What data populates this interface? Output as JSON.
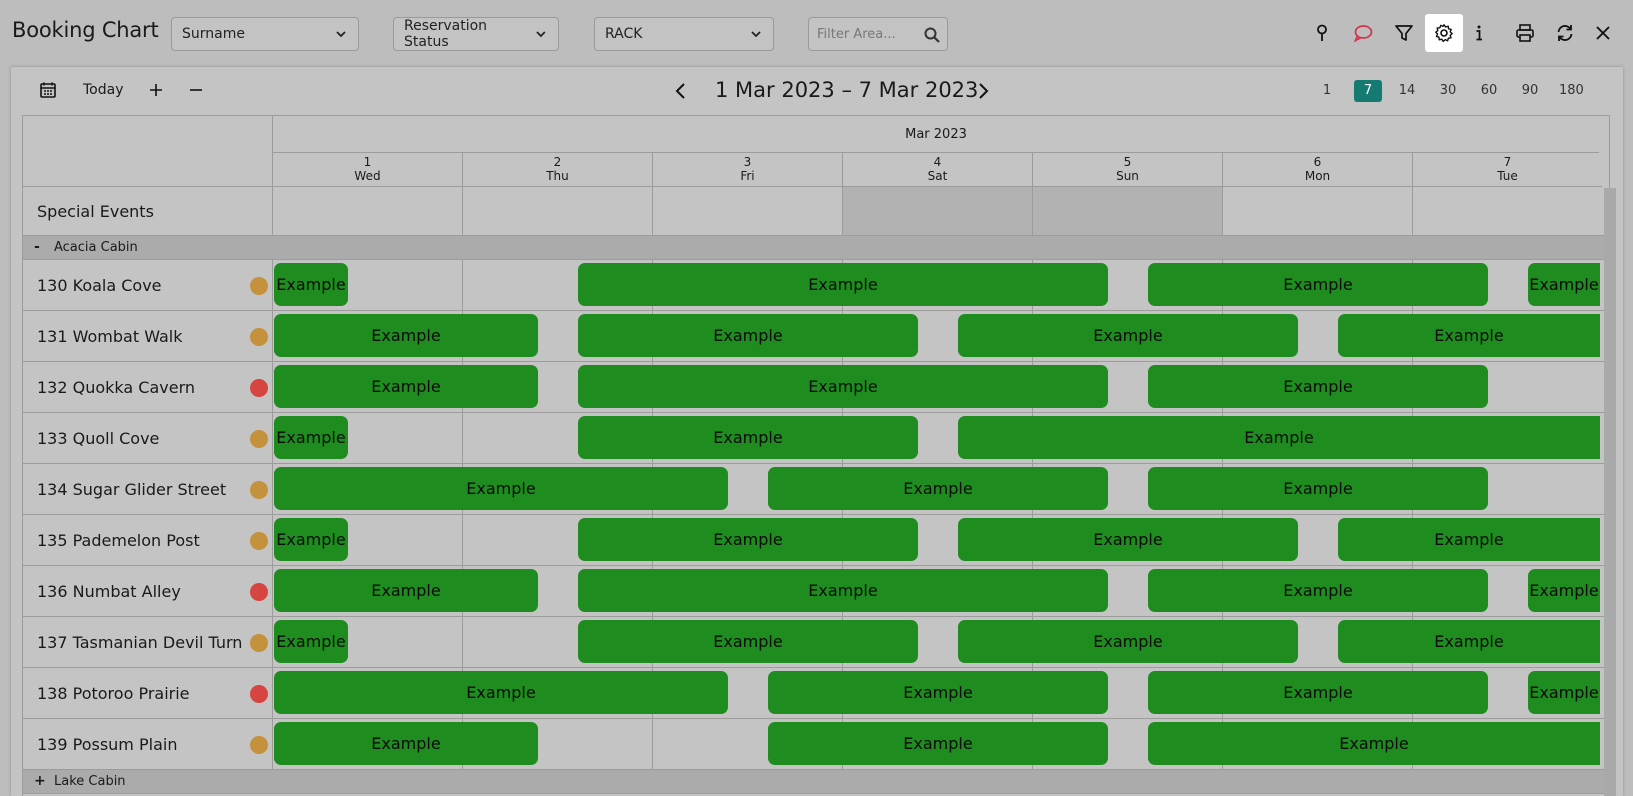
{
  "header": {
    "title": "Booking Chart",
    "sort_select": "Surname",
    "status_select": "Reservation Status",
    "rate_select": "RACK",
    "filter_placeholder": "Filter Area..."
  },
  "nav": {
    "today_label": "Today",
    "range_title": "1 Mar 2023 – 7 Mar 2023",
    "spans": [
      "1",
      "7",
      "14",
      "30",
      "60",
      "90",
      "180"
    ],
    "active_span": "7"
  },
  "chart": {
    "month": "Mar 2023",
    "days": [
      {
        "num": "1",
        "dow": "Wed"
      },
      {
        "num": "2",
        "dow": "Thu"
      },
      {
        "num": "3",
        "dow": "Fri"
      },
      {
        "num": "4",
        "dow": "Sat"
      },
      {
        "num": "5",
        "dow": "Sun"
      },
      {
        "num": "6",
        "dow": "Mon"
      },
      {
        "num": "7",
        "dow": "Tue"
      }
    ],
    "weekend_days": [
      3,
      4
    ],
    "special_events_label": "Special Events",
    "booking_label": "Example",
    "groups": [
      {
        "toggle": "-",
        "name": "Acacia Cabin",
        "rooms": [
          {
            "name": "130 Koala Cove",
            "status": "amber",
            "bookings": [
              [
                0,
                0.4
              ],
              [
                1.6,
                4.4
              ],
              [
                4.6,
                6.4
              ],
              [
                6.6,
                7
              ]
            ]
          },
          {
            "name": "131 Wombat Walk",
            "status": "amber",
            "bookings": [
              [
                0,
                1.4
              ],
              [
                1.6,
                3.4
              ],
              [
                3.6,
                5.4
              ],
              [
                5.6,
                7
              ]
            ]
          },
          {
            "name": "132 Quokka Cavern",
            "status": "red",
            "bookings": [
              [
                0,
                1.4
              ],
              [
                1.6,
                4.4
              ],
              [
                4.6,
                6.4
              ]
            ]
          },
          {
            "name": "133 Quoll Cove",
            "status": "amber",
            "bookings": [
              [
                0,
                0.4
              ],
              [
                1.6,
                3.4
              ],
              [
                3.6,
                7
              ]
            ]
          },
          {
            "name": "134 Sugar Glider Street",
            "status": "amber",
            "bookings": [
              [
                0,
                2.4
              ],
              [
                2.6,
                4.4
              ],
              [
                4.6,
                6.4
              ]
            ]
          },
          {
            "name": "135 Pademelon Post",
            "status": "amber",
            "bookings": [
              [
                0,
                0.4
              ],
              [
                1.6,
                3.4
              ],
              [
                3.6,
                5.4
              ],
              [
                5.6,
                7
              ]
            ]
          },
          {
            "name": "136 Numbat Alley",
            "status": "red",
            "bookings": [
              [
                0,
                1.4
              ],
              [
                1.6,
                4.4
              ],
              [
                4.6,
                6.4
              ],
              [
                6.6,
                7
              ]
            ]
          },
          {
            "name": "137 Tasmanian Devil Turn",
            "status": "amber",
            "bookings": [
              [
                0,
                0.4
              ],
              [
                1.6,
                3.4
              ],
              [
                3.6,
                5.4
              ],
              [
                5.6,
                7
              ]
            ]
          },
          {
            "name": "138 Potoroo Prairie",
            "status": "red",
            "bookings": [
              [
                0,
                2.4
              ],
              [
                2.6,
                4.4
              ],
              [
                4.6,
                6.4
              ],
              [
                6.6,
                7
              ]
            ]
          },
          {
            "name": "139 Possum Plain",
            "status": "amber",
            "bookings": [
              [
                0,
                1.4
              ],
              [
                2.6,
                4.4
              ],
              [
                4.6,
                7
              ]
            ]
          }
        ]
      },
      {
        "toggle": "+",
        "name": "Lake Cabin",
        "rooms": []
      }
    ]
  },
  "colors": {
    "booking": "#1e8c1e",
    "amber": "#c4913c",
    "red": "#d64541",
    "accent": "#157a72",
    "message_icon": "#d0324b"
  }
}
